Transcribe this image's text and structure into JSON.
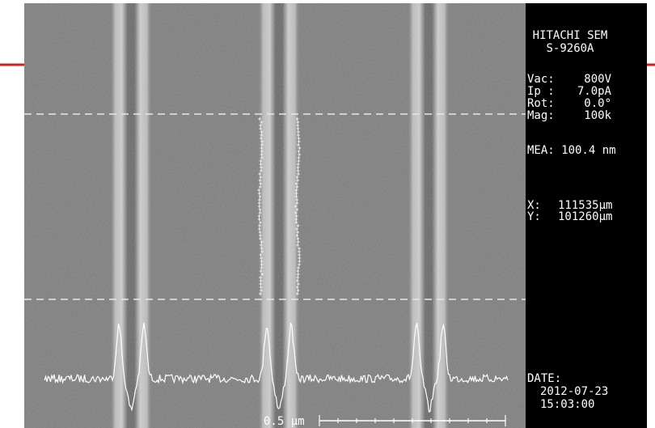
{
  "header": {
    "brand": "HITACHI SEM",
    "model": "S-9260A"
  },
  "params": [
    {
      "label": "Vac:",
      "value": "800V"
    },
    {
      "label": "Ip :",
      "value": "7.0pA"
    },
    {
      "label": "Rot:",
      "value": "0.0°"
    },
    {
      "label": "Mag:",
      "value": "100k"
    }
  ],
  "measurement": "MEA: 100.4 nm",
  "stage": [
    {
      "label": "X:",
      "value": "111535µm"
    },
    {
      "label": "Y:",
      "value": "101260µm"
    }
  ],
  "date": {
    "label": "DATE:",
    "date": "2012-07-23",
    "time": "15:03:00"
  },
  "scale_bar": "0.5 µm"
}
